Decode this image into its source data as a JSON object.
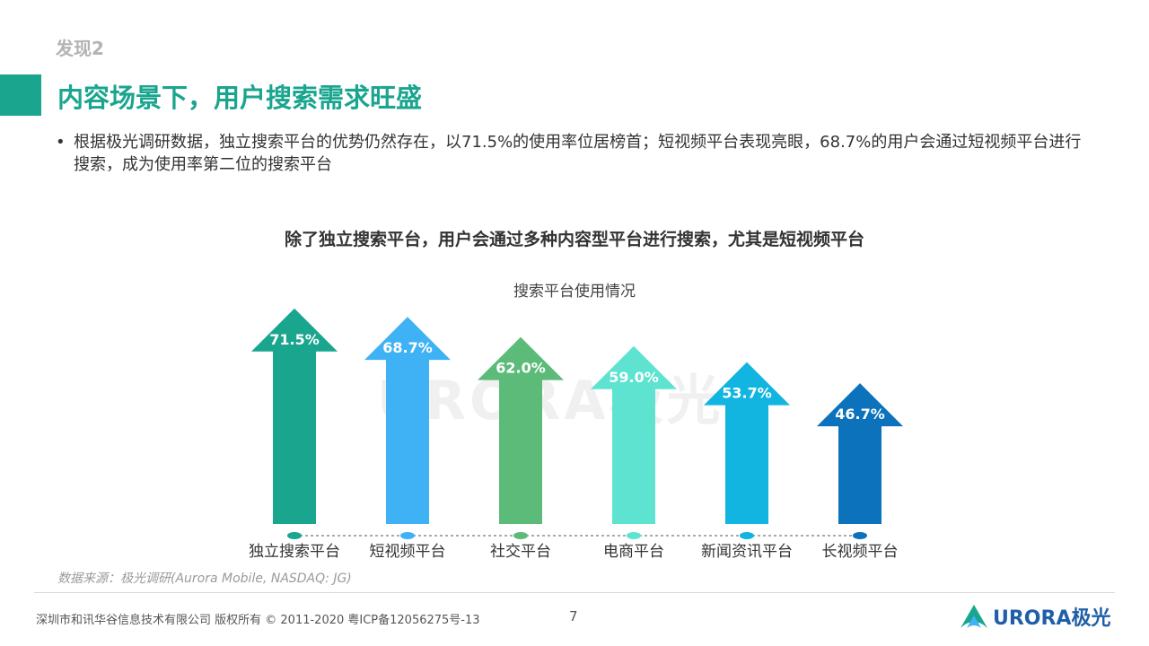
{
  "header": {
    "section_label": "发现2",
    "title": "内容场景下，用户搜索需求旺盛"
  },
  "bullet": {
    "dot": "•",
    "text": "根据极光调研数据，独立搜索平台的优势仍然存在，以71.5%的使用率位居榜首；短视频平台表现亮眼，68.7%的用户会通过短视频平台进行搜索，成为使用率第二位的搜索平台"
  },
  "chart_heading": "除了独立搜索平台，用户会通过多种内容型平台进行搜索，尤其是短视频平台",
  "chart_data": {
    "type": "bar",
    "title": "搜索平台使用情况",
    "categories": [
      "独立搜索平台",
      "短视频平台",
      "社交平台",
      "电商平台",
      "新闻资讯平台",
      "长视频平台"
    ],
    "values": [
      71.5,
      68.7,
      62.0,
      59.0,
      53.7,
      46.7
    ],
    "value_labels": [
      "71.5%",
      "68.7%",
      "62.0%",
      "59.0%",
      "53.7%",
      "46.7%"
    ],
    "colors": [
      "#1aa58f",
      "#3fb2f5",
      "#5cbb78",
      "#5ee3d0",
      "#11b5e0",
      "#0b72bb"
    ],
    "unit": "%",
    "xlabel": "",
    "ylabel": "",
    "grid": false,
    "legend": "none",
    "mark_shape": "arrow"
  },
  "watermark": "URORA极光",
  "source": "数据来源：极光调研(Aurora Mobile, NASDAQ: JG)",
  "footer": {
    "copyright": "深圳市和讯华谷信息技术有限公司 版权所有 © 2011-2020 粤ICP备12056275号-13",
    "page_number": "7",
    "logo_text": "URORA极光",
    "logo_icon": "aurora-logo-icon"
  }
}
